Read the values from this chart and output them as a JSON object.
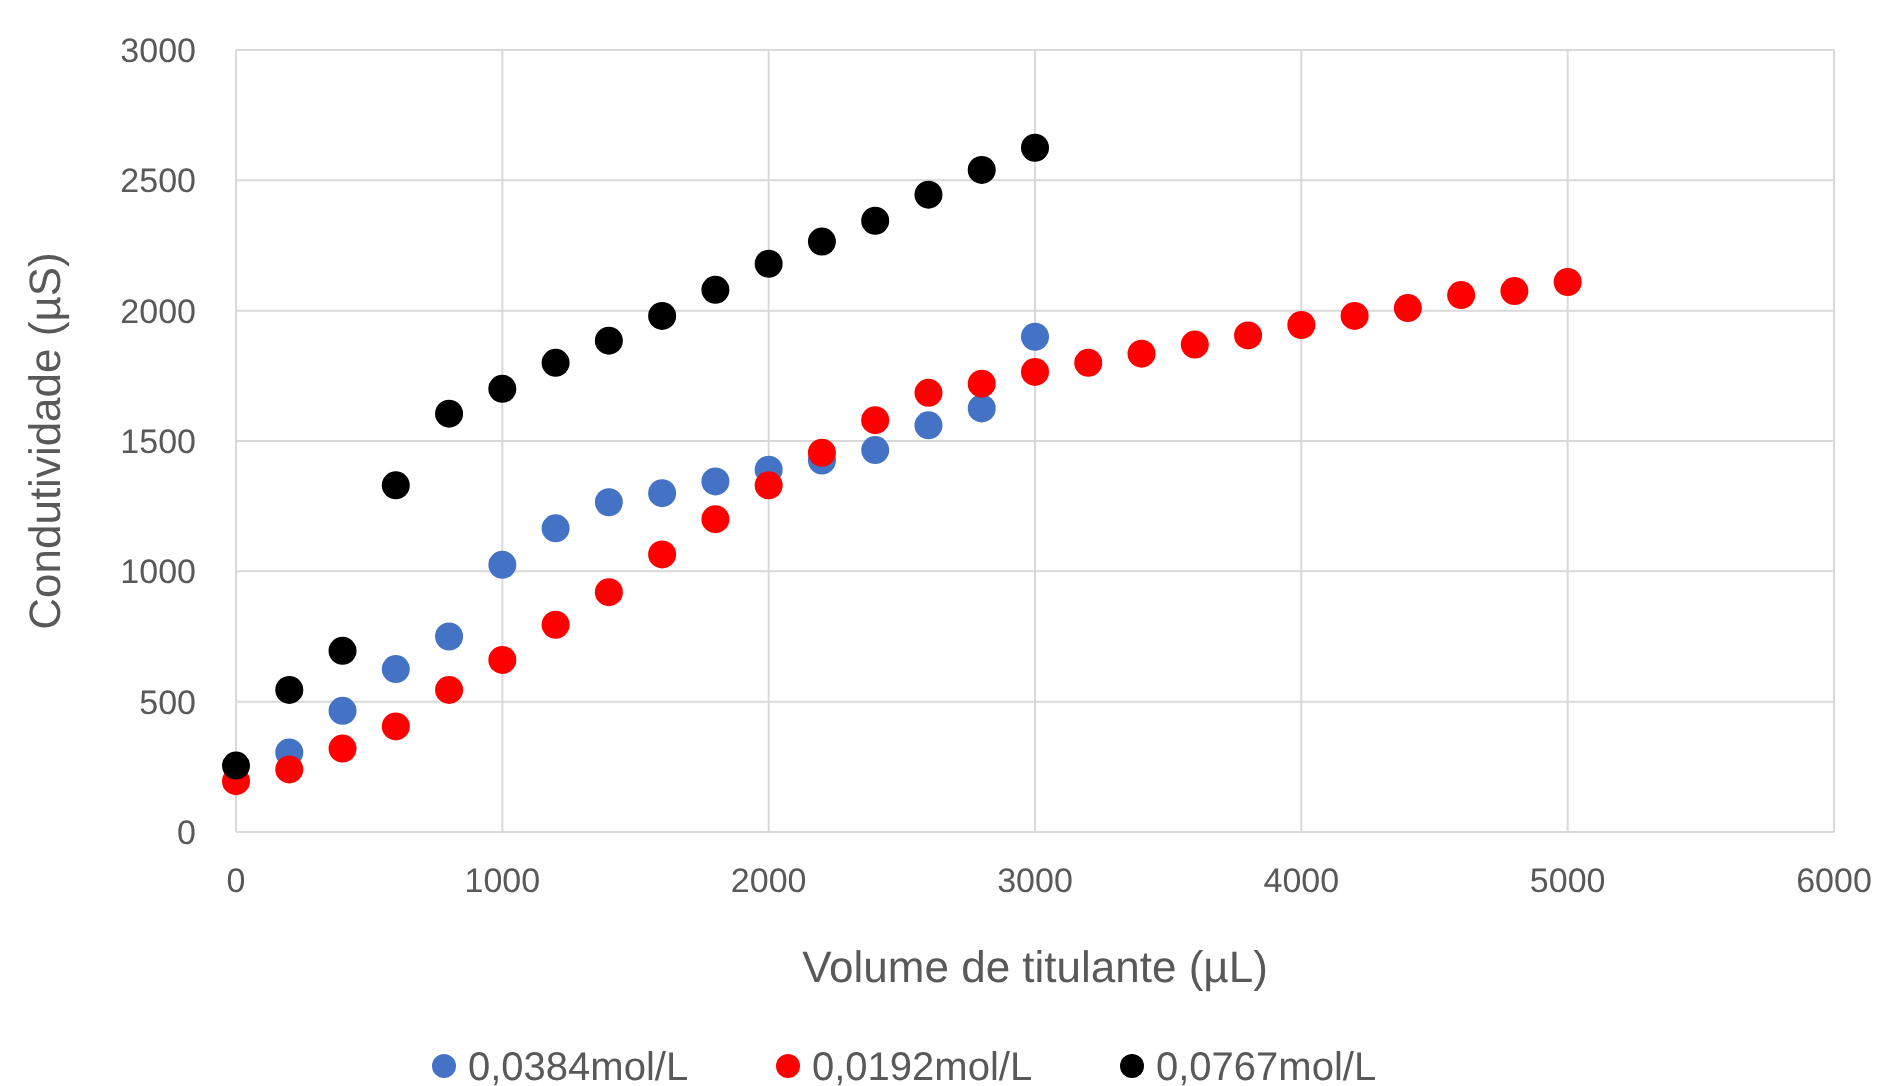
{
  "chart_data": {
    "type": "scatter",
    "xlabel": "Volume de titulante (µL)",
    "ylabel": "Condutividade (µS)",
    "xlim": [
      0,
      6000
    ],
    "xticks": [
      0,
      1000,
      2000,
      3000,
      4000,
      5000,
      6000
    ],
    "ylim": [
      0,
      3000
    ],
    "yticks": [
      0,
      500,
      1000,
      1500,
      2000,
      2500,
      3000
    ],
    "grid": true,
    "legend": "bottom",
    "marker": "circle",
    "series": [
      {
        "name": "0,0384mol/L",
        "color": "#4472c4",
        "x": [
          200,
          400,
          600,
          800,
          1000,
          1200,
          1400,
          1600,
          1800,
          2000,
          2200,
          2400,
          2600,
          2800,
          3000
        ],
        "values": [
          305,
          465,
          625,
          750,
          1025,
          1165,
          1265,
          1300,
          1345,
          1390,
          1425,
          1465,
          1560,
          1625,
          1900
        ]
      },
      {
        "name": "0,0192mol/L",
        "color": "#ff0000",
        "x": [
          0,
          200,
          400,
          600,
          800,
          1000,
          1200,
          1400,
          1600,
          1800,
          2000,
          2200,
          2400,
          2600,
          2800,
          3000,
          3200,
          3400,
          3600,
          3800,
          4000,
          4200,
          4400,
          4600,
          4800,
          5000
        ],
        "values": [
          195,
          240,
          320,
          405,
          545,
          660,
          795,
          920,
          1065,
          1200,
          1330,
          1455,
          1580,
          1685,
          1720,
          1765,
          1800,
          1835,
          1870,
          1905,
          1945,
          1980,
          2010,
          2060,
          2075,
          2110
        ]
      },
      {
        "name": "0,0767mol/L",
        "color": "#000000",
        "x": [
          0,
          200,
          400,
          600,
          800,
          1000,
          1200,
          1400,
          1600,
          1800,
          2000,
          2200,
          2400,
          2600,
          2800,
          3000
        ],
        "values": [
          255,
          545,
          695,
          1330,
          1605,
          1700,
          1800,
          1885,
          1980,
          2080,
          2180,
          2265,
          2345,
          2445,
          2540,
          2625
        ]
      }
    ]
  }
}
